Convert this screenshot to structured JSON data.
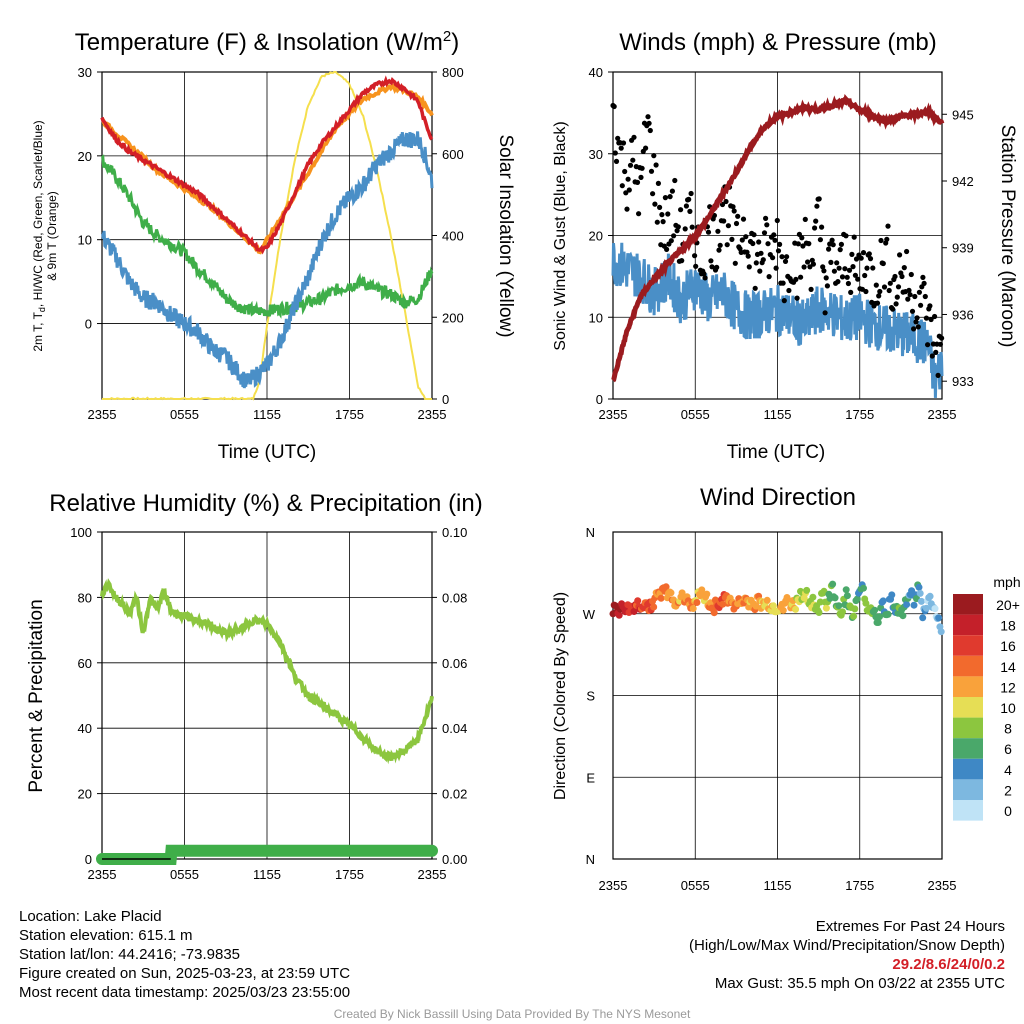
{
  "colors": {
    "temp_red": "#d31f27",
    "heat_index_green": "#3fae49",
    "chill_scarlet": "#d31f27",
    "dewpoint_blue": "#4a8fc7",
    "temp9m_orange": "#f7931e",
    "solar_yellow": "#f5df4d",
    "pressure_maroon": "#9b1b1f",
    "gust_black": "#000000",
    "rh_green": "#8cc63f",
    "precip_green": "#3fae49"
  },
  "panels": {
    "temperature": {
      "title_main": "Temperature (F) & Insolation (W/m",
      "title_sup": "2",
      "title_end": ")",
      "ylabel_line1_a": "2m T, T",
      "ylabel_sub": "d",
      "ylabel_line1_b": ", HI/WC (Red, Green, Scarlet/Blue)",
      "ylabel_line2": "& 9m T (Orange)",
      "y2label": "Solar Insolation (Yellow)",
      "xlabel": "Time (UTC)"
    },
    "winds": {
      "title": "Winds (mph) & Pressure (mb)",
      "ylabel": "Sonic Wind & Gust (Blue, Black)",
      "y2label": "Station Pressure (Maroon)",
      "xlabel": "Time (UTC)"
    },
    "humidity": {
      "title": "Relative Humidity (%) & Precipitation (in)",
      "ylabel": "Percent & Precipitation"
    },
    "direction": {
      "title": "Wind Direction",
      "ylabel": "Direction (Colored By Speed)",
      "legend_title": "mph",
      "legend_labels": [
        "20+",
        "18",
        "16",
        "14",
        "12",
        "10",
        "8",
        "6",
        "4",
        "2",
        "0"
      ],
      "legend_colors": [
        "#9b1b1f",
        "#c4202a",
        "#e03a2e",
        "#f26a2d",
        "#f9a23b",
        "#e6de55",
        "#8cc63f",
        "#4aa86a",
        "#3f88c5",
        "#7db8e0",
        "#bfe3f6"
      ]
    }
  },
  "chart_data": [
    {
      "type": "line",
      "title": "Temperature (F) & Insolation (W/m2)",
      "xlabel": "Time (UTC)",
      "ylabel": "2m T, Td, HI/WC (Red, Green, Scarlet/Blue) & 9m T (Orange)",
      "y2label": "Solar Insolation (Yellow)",
      "x_ticks": [
        "2355",
        "0555",
        "1155",
        "1755",
        "2355"
      ],
      "x_hours": [
        0,
        24
      ],
      "ylim": [
        -9,
        30
      ],
      "y_ticks": [
        0,
        10,
        20,
        30
      ],
      "y2lim": [
        0,
        800
      ],
      "y2_ticks": [
        0,
        200,
        400,
        600,
        800
      ],
      "grid": true,
      "series": [
        {
          "name": "2m T (Red)",
          "axis": "left",
          "x": [
            0,
            1,
            2,
            3,
            4,
            5,
            6,
            7,
            8,
            9,
            10,
            11,
            11.5,
            12,
            13,
            14,
            15,
            16,
            17,
            18,
            19,
            20,
            21,
            22,
            23,
            23.5,
            24
          ],
          "values": [
            24.5,
            22,
            20.5,
            19.5,
            18.5,
            17.5,
            16.5,
            15.5,
            14,
            12.5,
            11,
            9.5,
            8.7,
            9,
            12,
            15.5,
            19,
            21.5,
            23.5,
            25.5,
            27.5,
            28.5,
            29,
            28,
            26.5,
            24,
            22
          ]
        },
        {
          "name": "9m T (Orange)",
          "axis": "left",
          "x": [
            0,
            4,
            8,
            11.5,
            14,
            17,
            19,
            21,
            22,
            23,
            24
          ],
          "values": [
            24.2,
            18.3,
            13.8,
            8.6,
            15.3,
            23.3,
            26.8,
            28.3,
            27.8,
            27,
            25
          ]
        },
        {
          "name": "Td (Blue)",
          "axis": "left",
          "x": [
            0,
            1,
            2,
            3,
            4,
            5,
            6,
            7,
            8,
            9,
            10,
            10.5,
            11,
            12,
            13,
            14,
            15,
            16,
            17,
            18,
            19,
            20,
            21,
            22,
            23,
            23.5,
            24
          ],
          "values": [
            10.5,
            8,
            5,
            3,
            2.5,
            1,
            0,
            -1,
            -3,
            -4,
            -6,
            -7,
            -6.5,
            -5,
            -2,
            2,
            5.5,
            10,
            13,
            15,
            16.5,
            19,
            20.5,
            22,
            22,
            20,
            17
          ]
        },
        {
          "name": "HI/WC (Green)",
          "axis": "left",
          "x": [
            0,
            1,
            2,
            3,
            4,
            5,
            6,
            7,
            8,
            9,
            10,
            11,
            12,
            13,
            14,
            15,
            16,
            17,
            18,
            19,
            20,
            21,
            22,
            23,
            24
          ],
          "values": [
            19.5,
            17.5,
            15,
            12,
            10.5,
            9.5,
            8.5,
            6.5,
            5,
            3,
            2,
            1.5,
            1.5,
            1.8,
            2,
            2.5,
            3,
            4,
            4.5,
            5,
            4,
            3.5,
            2.5,
            3,
            6.5
          ]
        },
        {
          "name": "Solar Insolation (Yellow)",
          "axis": "right",
          "x": [
            0,
            11,
            11.5,
            12,
            13,
            14,
            15,
            16,
            17,
            18,
            19,
            20,
            21,
            22,
            23,
            23.5,
            24
          ],
          "values": [
            0,
            0,
            50,
            180,
            400,
            580,
            720,
            790,
            800,
            770,
            690,
            560,
            400,
            220,
            30,
            0,
            0
          ]
        }
      ]
    },
    {
      "type": "line",
      "title": "Winds (mph) & Pressure (mb)",
      "xlabel": "Time (UTC)",
      "ylabel": "Sonic Wind & Gust (Blue, Black)",
      "y2label": "Station Pressure (Maroon)",
      "x_ticks": [
        "2355",
        "0555",
        "1155",
        "1755",
        "2355"
      ],
      "x_hours": [
        0,
        24
      ],
      "ylim": [
        0,
        40
      ],
      "y_ticks": [
        0,
        10,
        20,
        30,
        40
      ],
      "y2lim": [
        932.2,
        946.9
      ],
      "y2_ticks": [
        933,
        936,
        939,
        942,
        945
      ],
      "grid": true,
      "series": [
        {
          "name": "Sonic Wind (Blue)",
          "axis": "left",
          "x": [
            0,
            1,
            2,
            3,
            4,
            5,
            6,
            7,
            8,
            9,
            10,
            11,
            12,
            13,
            14,
            15,
            16,
            17,
            18,
            19,
            20,
            21,
            22,
            23,
            23.5,
            24
          ],
          "values": [
            17,
            16,
            15,
            13,
            15,
            12,
            14,
            12,
            13,
            11,
            10,
            10.5,
            11,
            10,
            9,
            11,
            10.5,
            9.5,
            10,
            9,
            8.5,
            8,
            7.5,
            6.5,
            2,
            4.5
          ]
        },
        {
          "name": "Gust (Black)",
          "axis": "left",
          "x": [
            0,
            0.5,
            1,
            1.5,
            2,
            2.5,
            3,
            3.5,
            4,
            4.5,
            5,
            5.5,
            6,
            6.5,
            7,
            7.5,
            8,
            8.5,
            9,
            9.5,
            10,
            10.5,
            11,
            11.5,
            12,
            12.5,
            13,
            13.5,
            14,
            14.5,
            15,
            15.5,
            16,
            16.5,
            17,
            17.5,
            18,
            18.5,
            19,
            19.5,
            20,
            20.5,
            21,
            21.5,
            22,
            22.5,
            23,
            23.5,
            24
          ],
          "values": [
            35.5,
            30,
            27,
            29,
            25,
            34,
            27,
            22,
            21,
            23,
            19,
            22,
            20,
            17,
            21,
            19,
            24,
            22,
            18,
            21,
            20,
            16,
            19,
            17,
            20,
            15,
            18,
            16,
            19,
            17,
            22,
            14,
            17,
            15,
            18,
            16,
            15,
            17,
            14,
            16,
            18,
            13,
            16,
            14,
            12,
            13,
            9,
            7,
            5
          ]
        },
        {
          "name": "Station Pressure (Maroon)",
          "axis": "right",
          "x": [
            0,
            1,
            2,
            3,
            4,
            5,
            6,
            7,
            8,
            9,
            10,
            11,
            12,
            13,
            14,
            15,
            16,
            17,
            18,
            19,
            20,
            21,
            22,
            23,
            24
          ],
          "values": [
            933,
            935.2,
            936.8,
            937.6,
            938.3,
            938.9,
            939.5,
            940.4,
            941.4,
            942.4,
            943.5,
            944.4,
            944.9,
            945.1,
            945.3,
            945.2,
            945.4,
            945.6,
            945.2,
            944.9,
            944.7,
            944.9,
            945.0,
            945.1,
            944.6
          ]
        }
      ]
    },
    {
      "type": "line",
      "title": "Relative Humidity (%) & Precipitation (in)",
      "ylabel": "Percent & Precipitation",
      "x_ticks": [
        "2355",
        "0555",
        "1155",
        "1755",
        "2355"
      ],
      "x_hours": [
        0,
        24
      ],
      "ylim": [
        0,
        100
      ],
      "y_ticks": [
        0,
        20,
        40,
        60,
        80,
        100
      ],
      "y2lim": [
        0,
        0.1
      ],
      "y2_ticks": [
        0.0,
        0.02,
        0.04,
        0.06,
        0.08,
        0.1
      ],
      "grid": true,
      "series": [
        {
          "name": "Relative Humidity",
          "axis": "left",
          "x": [
            0,
            0.5,
            1,
            1.5,
            2,
            2.5,
            3,
            3.5,
            4,
            4.5,
            5,
            5.5,
            6,
            7,
            8,
            9,
            10,
            11,
            12,
            13,
            14,
            15,
            16,
            17,
            18,
            19,
            20,
            21,
            22,
            23,
            24
          ],
          "values": [
            81,
            84,
            80,
            78,
            75,
            80,
            69,
            80,
            76,
            82,
            76,
            75,
            74,
            73,
            71,
            69,
            70,
            73,
            72,
            66,
            56,
            50,
            47,
            44,
            41,
            37,
            33,
            31,
            33,
            37,
            49
          ]
        },
        {
          "name": "Precipitation",
          "axis": "left",
          "x": [
            0,
            5,
            5.01,
            24
          ],
          "values": [
            0,
            0,
            2.5,
            2.5
          ]
        }
      ]
    },
    {
      "type": "scatter",
      "title": "Wind Direction",
      "ylabel": "Direction (Colored By Speed)",
      "x_ticks": [
        "2355",
        "0555",
        "1155",
        "1755",
        "2355"
      ],
      "x_hours": [
        0,
        24
      ],
      "y_ticks": [
        "N",
        "E",
        "S",
        "W",
        "N"
      ],
      "ylim": [
        0,
        360
      ],
      "legend_title": "mph",
      "series": [
        {
          "name": "Wind Direction",
          "x": [
            0.2,
            0.5,
            0.8,
            1.1,
            1.4,
            1.7,
            2.0,
            2.3,
            2.6,
            3.0,
            3.3,
            3.6,
            4.0,
            4.3,
            4.6,
            5.0,
            5.3,
            5.6,
            6.0,
            6.3,
            6.6,
            7.0,
            7.3,
            7.6,
            8.0,
            8.3,
            8.6,
            9.0,
            9.3,
            9.6,
            10.0,
            10.3,
            10.6,
            11.0,
            11.3,
            11.6,
            12.0,
            12.3,
            12.6,
            13.0,
            13.3,
            13.6,
            14.0,
            14.3,
            14.6,
            15.0,
            15.3,
            15.6,
            16.0,
            16.3,
            16.6,
            17.0,
            17.3,
            17.6,
            18.0,
            18.3,
            18.6,
            19.0,
            19.3,
            19.6,
            20.0,
            20.3,
            20.6,
            21.0,
            21.3,
            21.6,
            22.0,
            22.3,
            22.6,
            23.0,
            23.3,
            23.6,
            23.9
          ],
          "direction_deg": [
            275,
            272,
            278,
            274,
            276,
            280,
            279,
            282,
            277,
            285,
            290,
            294,
            292,
            288,
            283,
            286,
            291,
            280,
            284,
            289,
            293,
            281,
            276,
            282,
            284,
            287,
            281,
            283,
            279,
            285,
            282,
            280,
            283,
            279,
            281,
            277,
            276,
            279,
            283,
            280,
            278,
            289,
            293,
            287,
            281,
            273,
            298,
            276,
            300,
            283,
            270,
            290,
            276,
            268,
            301,
            292,
            266,
            278,
            258,
            284,
            269,
            289,
            276,
            270,
            279,
            296,
            282,
            300,
            268,
            286,
            281,
            268,
            256
          ],
          "speed_mph": [
            20,
            19,
            18,
            17,
            17,
            16,
            16,
            15,
            15,
            14,
            13,
            13,
            13,
            13,
            12,
            12,
            13,
            13,
            12,
            12,
            12,
            13,
            14,
            14,
            15,
            14,
            13,
            14,
            12,
            13,
            12,
            12,
            13,
            11,
            12,
            11,
            10,
            11,
            12,
            11,
            10,
            9,
            8,
            9,
            8,
            7,
            10,
            8,
            6,
            8,
            7,
            6,
            7,
            8,
            5,
            6,
            8,
            6,
            7,
            5,
            6,
            4,
            5,
            6,
            5,
            4,
            5,
            4,
            3,
            2,
            3,
            1,
            2
          ]
        }
      ]
    }
  ],
  "info": {
    "location": "Location: Lake Placid",
    "elevation": "Station elevation: 615.1 m",
    "latlon": "Station lat/lon: 44.2416; -73.9835",
    "created": "Figure created on Sun, 2025-03-23, at 23:59 UTC",
    "recent": "Most recent data timestamp: 2025/03/23 23:55:00",
    "extremes_title": "Extremes For Past 24 Hours",
    "extremes_desc": "(High/Low/Max Wind/Precipitation/Snow Depth)",
    "extremes_values": "29.2/8.6/24/0/0.2",
    "max_gust": "Max Gust: 35.5 mph On 03/22 at 2355 UTC",
    "credit": "Created By Nick Bassill Using Data Provided By The NYS Mesonet"
  }
}
